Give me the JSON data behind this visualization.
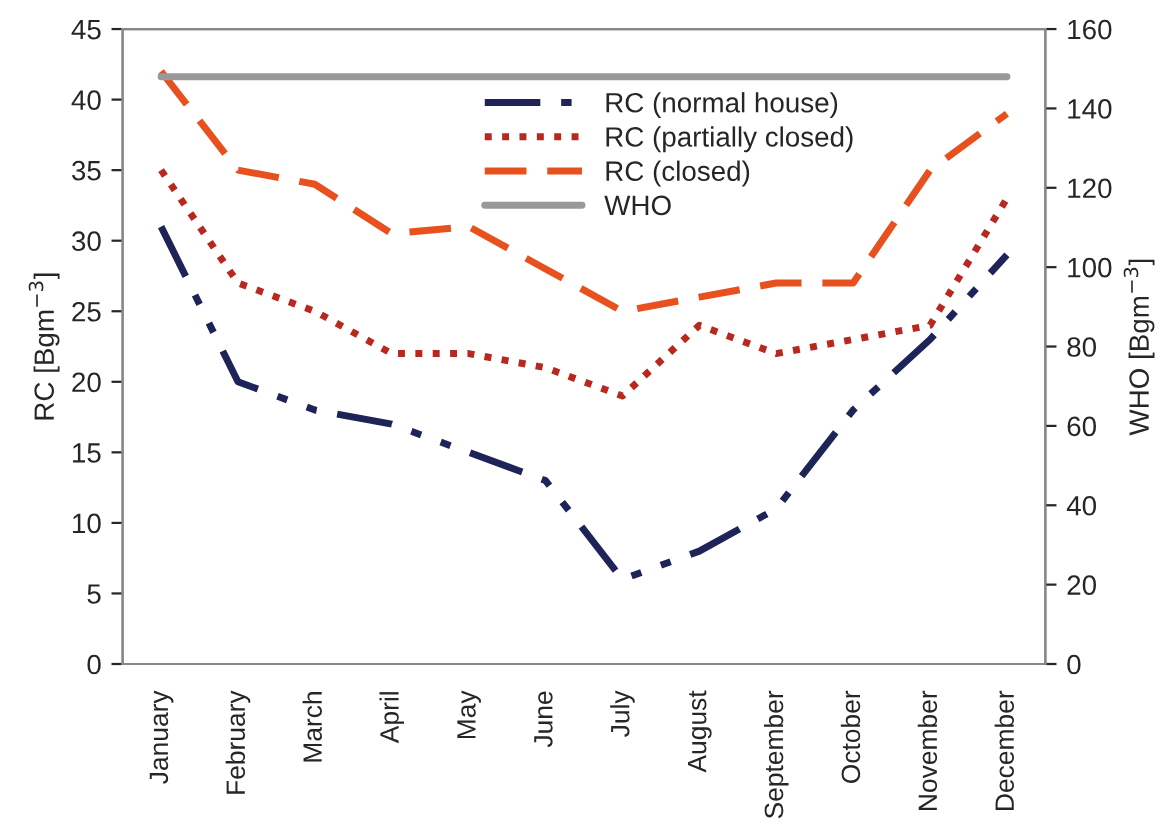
{
  "chart_data": {
    "type": "line",
    "ylabel": "RC [Bgm$^{−3}$]",
    "y2label": "WHO [Bgm$^{−3}$]",
    "categories": [
      "January",
      "February",
      "March",
      "April",
      "May",
      "June",
      "July",
      "August",
      "September",
      "October",
      "November",
      "December"
    ],
    "series": [
      {
        "name": "RC (normal house)",
        "color": "#1f2458",
        "line_style": "dashdot",
        "values": [
          31,
          20,
          18,
          17,
          15,
          13,
          6,
          8,
          11,
          18,
          23,
          29
        ]
      },
      {
        "name": "RC (partially closed)",
        "color": "#b8281e",
        "line_style": "dotted",
        "values": [
          35,
          27,
          25,
          22,
          22,
          21,
          19,
          24,
          22,
          23,
          24,
          33
        ]
      },
      {
        "name": "RC (closed)",
        "color": "#e8501e",
        "line_style": "dashed",
        "values": [
          42,
          35,
          34,
          30.5,
          31,
          28,
          25,
          26,
          27,
          27,
          35,
          39
        ]
      },
      {
        "name": "WHO",
        "color": "#999999",
        "line_style": "solid",
        "axis": "y2",
        "values": [
          148,
          148,
          148,
          148,
          148,
          148,
          148,
          148,
          148,
          148,
          148,
          148
        ]
      }
    ],
    "ylim": [
      0,
      45
    ],
    "yticks": [
      0,
      5,
      10,
      15,
      20,
      25,
      30,
      35,
      40,
      45
    ],
    "y2lim": [
      0,
      160
    ],
    "y2ticks": [
      0,
      20,
      40,
      60,
      80,
      100,
      120,
      140,
      160
    ],
    "legend": "top right",
    "grid": false,
    "marker": "none"
  }
}
